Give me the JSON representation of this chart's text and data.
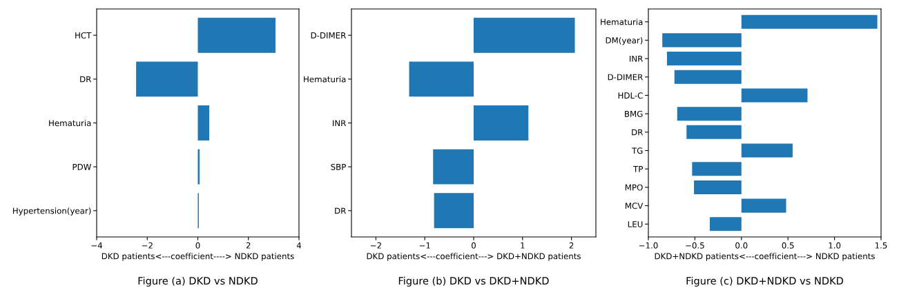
{
  "chart_data": [
    {
      "type": "bar",
      "orientation": "horizontal",
      "title": "Figure (a) DKD vs NDKD",
      "xlabel": "DKD patients<---coefficient----> NDKD patients",
      "categories": [
        "HCT",
        "DR",
        "Hematuria",
        "PDW",
        "Hypertension(year)"
      ],
      "values": [
        3.07,
        -2.44,
        0.45,
        0.07,
        0.04
      ],
      "color": "#1f77b4",
      "xlim": [
        -4,
        4
      ],
      "xticks": [
        -4,
        -2,
        0,
        2,
        4
      ],
      "grid": false
    },
    {
      "type": "bar",
      "orientation": "horizontal",
      "title": "Figure (b) DKD vs DKD+NDKD",
      "xlabel": "DKD patients<---coefficient---> DKD+NDKD patients",
      "categories": [
        "D-DIMER",
        "Hematuria",
        "INR",
        "SBP",
        "DR"
      ],
      "values": [
        2.07,
        -1.32,
        1.12,
        -0.83,
        -0.81
      ],
      "color": "#1f77b4",
      "xlim": [
        -2.5,
        2.5
      ],
      "xticks": [
        -2,
        -1,
        0,
        1,
        2
      ],
      "grid": false
    },
    {
      "type": "bar",
      "orientation": "horizontal",
      "title": "Figure (c) DKD+NDKD vs NDKD",
      "xlabel": "DKD+NDKD patients<---coefficient---> NDKD patients",
      "categories": [
        "Hematuria",
        "DM(year)",
        "INR",
        "D-DIMER",
        "HDL-C",
        "BMG",
        "DR",
        "TG",
        "TP",
        "MPO",
        "MCV",
        "LEU"
      ],
      "values": [
        1.46,
        -0.85,
        -0.8,
        -0.72,
        0.71,
        -0.69,
        -0.59,
        0.55,
        -0.53,
        -0.51,
        0.48,
        -0.34
      ],
      "color": "#1f77b4",
      "xlim": [
        -1.0,
        1.5
      ],
      "xticks": [
        {
          "value": -1.0,
          "label": "−1.0"
        },
        {
          "value": -0.5,
          "label": "−0.5"
        },
        {
          "value": 0.0,
          "label": "0.0"
        },
        {
          "value": 0.5,
          "label": "0.5"
        },
        {
          "value": 1.0,
          "label": "1.0"
        },
        {
          "value": 1.5,
          "label": "1.5"
        }
      ],
      "grid": false
    }
  ]
}
